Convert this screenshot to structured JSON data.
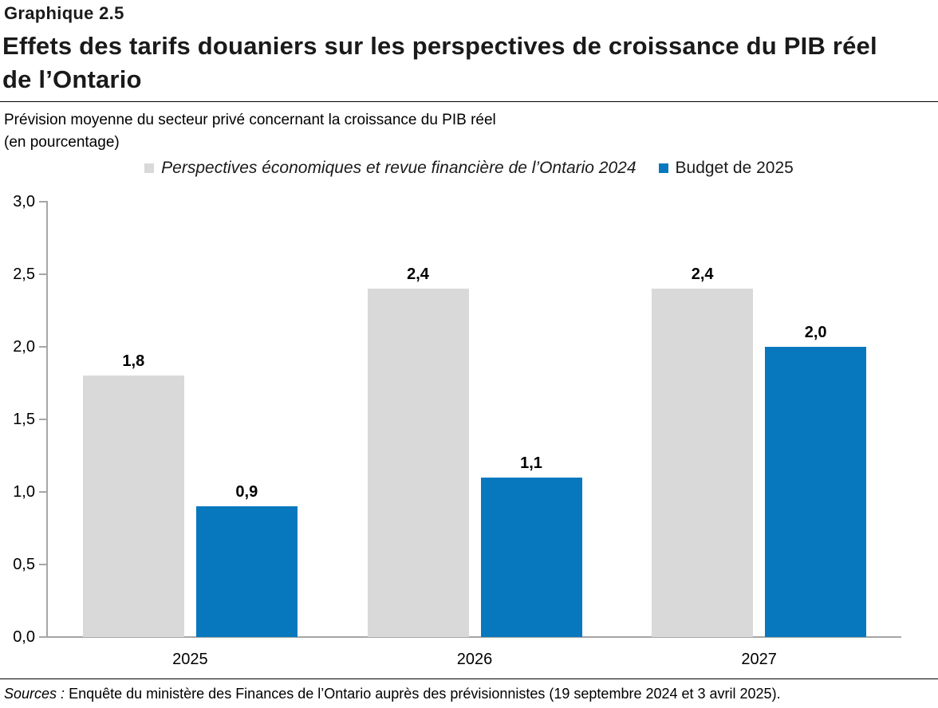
{
  "header": {
    "chart_number": "Graphique 2.5",
    "title": "Effets des tarifs douaniers sur les perspectives de croissance du PIB réel de l’Ontario",
    "subtitle_line1": "Prévision moyenne du secteur privé concernant la croissance du PIB réel",
    "subtitle_line2": "(en pourcentage)"
  },
  "legend": {
    "series1_label": "Perspectives économiques et revue financière de l’Ontario 2024",
    "series2_label": "Budget de 2025"
  },
  "footer": {
    "sources_label": "Sources :",
    "sources_text": "Enquête du ministère des Finances de l’Ontario auprès des prévisionnistes (19 septembre 2024 et 3 avril 2025)."
  },
  "colors": {
    "series1": "#d9d9d9",
    "series2": "#0878be",
    "axis": "#a6a6a6"
  },
  "chart_data": {
    "type": "bar",
    "title": "Effets des tarifs douaniers sur les perspectives de croissance du PIB réel de l’Ontario",
    "subtitle": "Prévision moyenne du secteur privé concernant la croissance du PIB réel (en pourcentage)",
    "categories": [
      "2025",
      "2026",
      "2027"
    ],
    "series": [
      {
        "name": "Perspectives économiques et revue financière de l’Ontario 2024",
        "color": "#d9d9d9",
        "values": [
          1.8,
          2.4,
          2.4
        ],
        "labels": [
          "1,8",
          "2,4",
          "2,4"
        ]
      },
      {
        "name": "Budget de 2025",
        "color": "#0878be",
        "values": [
          0.9,
          1.1,
          2.0
        ],
        "labels": [
          "0,9",
          "1,1",
          "2,0"
        ]
      }
    ],
    "xlabel": "",
    "ylabel": "",
    "ylim": [
      0.0,
      3.0
    ],
    "y_tick_step": 0.5,
    "y_tick_labels": [
      "0,0",
      "0,5",
      "1,0",
      "1,5",
      "2,0",
      "2,5",
      "3,0"
    ],
    "grid": false,
    "legend_position": "top"
  }
}
